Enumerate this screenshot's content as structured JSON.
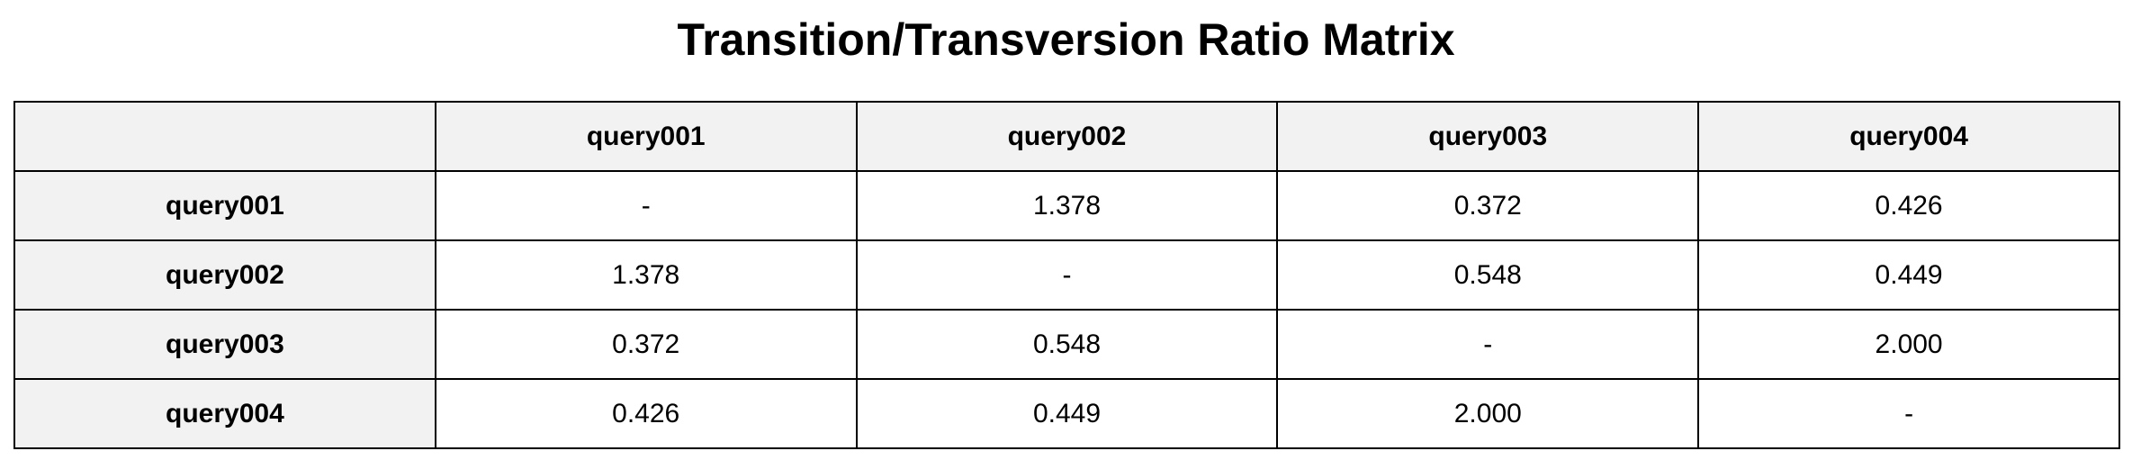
{
  "chart_data": {
    "type": "table",
    "title": "Transition/Transversion Ratio Matrix",
    "columns": [
      "",
      "query001",
      "query002",
      "query003",
      "query004"
    ],
    "rows": [
      {
        "label": "query001",
        "cells": [
          "-",
          "1.378",
          "0.372",
          "0.426"
        ]
      },
      {
        "label": "query002",
        "cells": [
          "1.378",
          "-",
          "0.548",
          "0.449"
        ]
      },
      {
        "label": "query003",
        "cells": [
          "0.372",
          "0.548",
          "-",
          "2.000"
        ]
      },
      {
        "label": "query004",
        "cells": [
          "0.426",
          "0.449",
          "2.000",
          "-"
        ]
      }
    ]
  },
  "colors": {
    "header_background": "#f2f2f2",
    "cell_background": "#ffffff",
    "border": "#000000",
    "text": "#000000"
  }
}
